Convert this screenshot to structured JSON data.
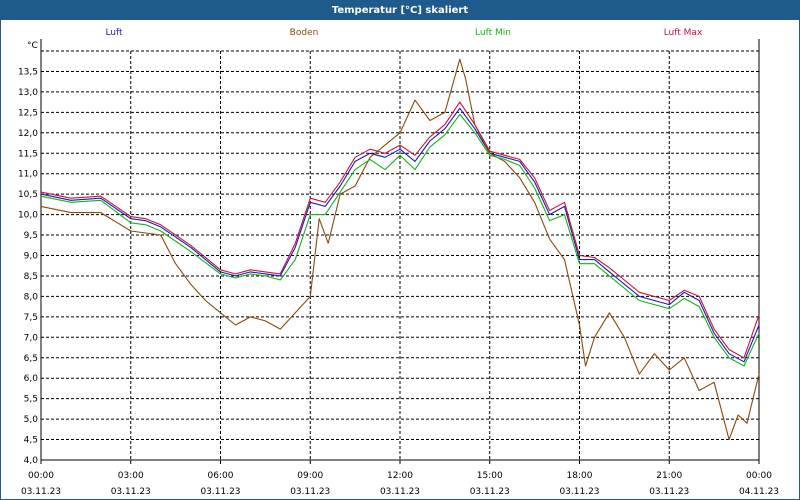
{
  "window": {
    "title": "Temperatur [°C] skaliert"
  },
  "chart_data": {
    "type": "line",
    "title": "Temperatur [°C] skaliert",
    "ylabel": "°C",
    "xlabel": "",
    "ylim": [
      4.0,
      14.0
    ],
    "xlim": [
      0,
      24
    ],
    "grid": true,
    "legend": "top",
    "y_ticks": [
      "4,0",
      "4,5",
      "5,0",
      "5,5",
      "6,0",
      "6,5",
      "7,0",
      "7,5",
      "8,0",
      "8,5",
      "9,0",
      "9,5",
      "10,0",
      "10,5",
      "11,0",
      "11,5",
      "12,0",
      "12,5",
      "13,0",
      "13,5"
    ],
    "x_ticks": [
      {
        "time": "00:00",
        "date": "03.11.23"
      },
      {
        "time": "03:00",
        "date": "03.11.23"
      },
      {
        "time": "06:00",
        "date": "03.11.23"
      },
      {
        "time": "09:00",
        "date": "03.11.23"
      },
      {
        "time": "12:00",
        "date": "03.11.23"
      },
      {
        "time": "15:00",
        "date": "03.11.23"
      },
      {
        "time": "18:00",
        "date": "03.11.23"
      },
      {
        "time": "21:00",
        "date": "03.11.23"
      },
      {
        "time": "00:00",
        "date": "04.11.23"
      }
    ],
    "series": [
      {
        "name": "Luft",
        "color": "#1a1ab4",
        "x": [
          0,
          1,
          2,
          3,
          3.5,
          4,
          5,
          6,
          6.5,
          7,
          7.5,
          8,
          8.5,
          9,
          9.5,
          10,
          10.5,
          11,
          11.5,
          12,
          12.5,
          13,
          13.5,
          14,
          14.5,
          15,
          15.5,
          16,
          16.5,
          17,
          17.5,
          18,
          18.5,
          19,
          20,
          21,
          21.5,
          22,
          22.5,
          23,
          23.5,
          24
        ],
        "values": [
          10.5,
          10.35,
          10.4,
          9.9,
          9.85,
          9.7,
          9.2,
          8.6,
          8.5,
          8.6,
          8.55,
          8.5,
          9.2,
          10.3,
          10.2,
          10.7,
          11.3,
          11.5,
          11.4,
          11.6,
          11.3,
          11.8,
          12.1,
          12.6,
          12.1,
          11.5,
          11.4,
          11.3,
          10.8,
          10.0,
          10.2,
          8.9,
          8.9,
          8.6,
          8.0,
          7.8,
          8.1,
          7.9,
          7.1,
          6.6,
          6.4,
          7.3
        ]
      },
      {
        "name": "Boden",
        "color": "#8b4a0a",
        "x": [
          0,
          1,
          2,
          3,
          4,
          4.5,
          5,
          5.5,
          6,
          6.5,
          7,
          7.5,
          8,
          8.5,
          9,
          9.3,
          9.6,
          10,
          10.5,
          11,
          11.5,
          12,
          12.5,
          13,
          13.5,
          14,
          14.2,
          14.5,
          15,
          15.5,
          16,
          16.5,
          17,
          17.5,
          18,
          18.2,
          18.5,
          19,
          19.5,
          20,
          20.5,
          21,
          21.5,
          22,
          22.5,
          23,
          23.3,
          23.6,
          24
        ],
        "values": [
          10.2,
          10.05,
          10.05,
          9.6,
          9.5,
          8.8,
          8.3,
          7.9,
          7.6,
          7.3,
          7.5,
          7.4,
          7.2,
          7.6,
          8.0,
          9.9,
          9.3,
          10.5,
          10.7,
          11.4,
          11.7,
          12.0,
          12.8,
          12.3,
          12.5,
          13.8,
          13.3,
          12.2,
          11.5,
          11.3,
          10.9,
          10.3,
          9.4,
          8.9,
          7.3,
          6.3,
          7.0,
          7.6,
          7.0,
          6.1,
          6.6,
          6.2,
          6.5,
          5.7,
          5.9,
          4.5,
          5.1,
          4.9,
          6.1
        ]
      },
      {
        "name": "Luft Min",
        "color": "#14b414",
        "x": [
          0,
          1,
          2,
          3,
          3.5,
          4,
          5,
          6,
          6.5,
          7,
          7.5,
          8,
          8.5,
          9,
          9.5,
          10,
          10.5,
          11,
          11.5,
          12,
          12.5,
          13,
          13.5,
          14,
          14.5,
          15,
          15.5,
          16,
          16.5,
          17,
          17.5,
          18,
          18.5,
          19,
          20,
          21,
          21.5,
          22,
          22.5,
          23,
          23.5,
          24
        ],
        "values": [
          10.45,
          10.3,
          10.35,
          9.8,
          9.75,
          9.6,
          9.1,
          8.55,
          8.45,
          8.55,
          8.5,
          8.4,
          8.9,
          10.0,
          10.0,
          10.55,
          11.1,
          11.35,
          11.1,
          11.45,
          11.1,
          11.65,
          11.95,
          12.45,
          12.0,
          11.45,
          11.35,
          11.2,
          10.65,
          9.85,
          10.0,
          8.8,
          8.8,
          8.5,
          7.9,
          7.7,
          7.95,
          7.75,
          7.0,
          6.5,
          6.3,
          7.1
        ]
      },
      {
        "name": "Luft Max",
        "color": "#c8143c",
        "x": [
          0,
          1,
          2,
          3,
          3.5,
          4,
          5,
          6,
          6.5,
          7,
          7.5,
          8,
          8.5,
          9,
          9.5,
          10,
          10.5,
          11,
          11.5,
          12,
          12.5,
          13,
          13.5,
          14,
          14.5,
          15,
          15.5,
          16,
          16.5,
          17,
          17.5,
          18,
          18.5,
          19,
          20,
          21,
          21.5,
          22,
          22.5,
          23,
          23.5,
          24
        ],
        "values": [
          10.55,
          10.4,
          10.45,
          9.95,
          9.9,
          9.75,
          9.25,
          8.65,
          8.55,
          8.65,
          8.6,
          8.55,
          9.3,
          10.4,
          10.3,
          10.8,
          11.4,
          11.6,
          11.5,
          11.7,
          11.45,
          11.9,
          12.2,
          12.75,
          12.2,
          11.55,
          11.45,
          11.35,
          10.9,
          10.1,
          10.3,
          9.0,
          8.95,
          8.7,
          8.1,
          7.9,
          8.15,
          8.0,
          7.2,
          6.7,
          6.5,
          7.55
        ]
      }
    ]
  }
}
